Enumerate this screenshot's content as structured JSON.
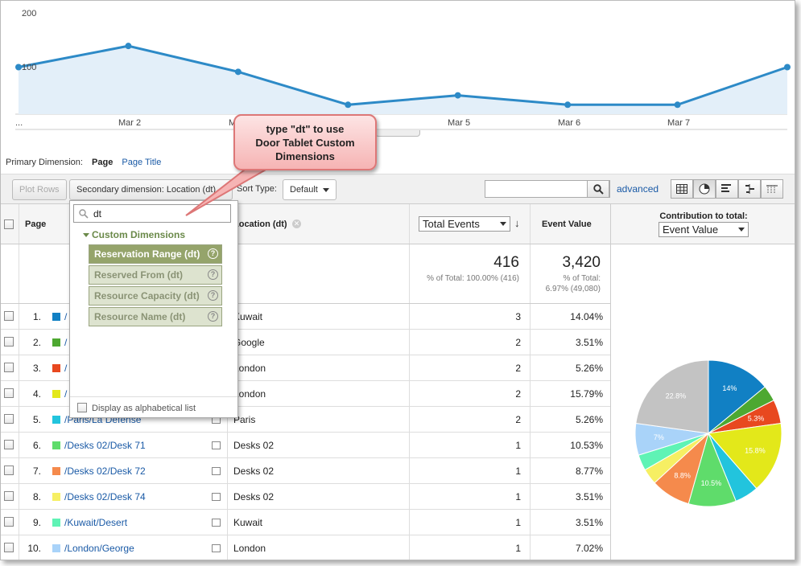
{
  "chart": {
    "y_ticks": [
      "200",
      "100"
    ],
    "x_ticks": [
      "...",
      "Mar 2",
      "M",
      "Mar 5",
      "Mar 6",
      "Mar 7"
    ],
    "values": [
      100,
      145,
      90,
      20,
      40,
      20,
      20,
      100
    ],
    "line_color": "#2d8ac7",
    "fill_color": "#e3eff9"
  },
  "primary_dimension": {
    "label": "Primary Dimension:",
    "current": "Page",
    "alternate": "Page Title"
  },
  "toolbar": {
    "plot_rows": "Plot Rows",
    "secondary_dimension": "Secondary dimension: Location (dt)",
    "sort_type_label": "Sort Type:",
    "sort_type_value": "Default",
    "search_value": "",
    "advanced": "advanced"
  },
  "table": {
    "headers": {
      "page": "Page",
      "location": "Location (dt)",
      "metric_select": "Total Events",
      "event_value": "Event Value",
      "contribution": "Contribution to total:",
      "contribution_select": "Event Value"
    },
    "summary": {
      "events": "416",
      "events_pct": "% of Total: 100.00% (416)",
      "value": "3,420",
      "value_pct_line1": "% of Total:",
      "value_pct_line2": "6.97% (49,080)"
    },
    "rows": [
      {
        "num": "1.",
        "page": "/",
        "location": "Kuwait",
        "events": "3",
        "value": "14.04%",
        "color": "#1180c4"
      },
      {
        "num": "2.",
        "page": "/",
        "location": "Google",
        "events": "2",
        "value": "3.51%",
        "color": "#4da831"
      },
      {
        "num": "3.",
        "page": "/",
        "location": "London",
        "events": "2",
        "value": "5.26%",
        "color": "#e8481f"
      },
      {
        "num": "4.",
        "page": "/",
        "location": "London",
        "events": "2",
        "value": "15.79%",
        "color": "#e3e81a"
      },
      {
        "num": "5.",
        "page": "/Paris/La Defense",
        "location": "Paris",
        "events": "2",
        "value": "5.26%",
        "color": "#22c4dd"
      },
      {
        "num": "6.",
        "page": "/Desks 02/Desk 71",
        "location": "Desks 02",
        "events": "1",
        "value": "10.53%",
        "color": "#5fdc6b"
      },
      {
        "num": "7.",
        "page": "/Desks 02/Desk 72",
        "location": "Desks 02",
        "events": "1",
        "value": "8.77%",
        "color": "#f58a4c"
      },
      {
        "num": "8.",
        "page": "/Desks 02/Desk 74",
        "location": "Desks 02",
        "events": "1",
        "value": "3.51%",
        "color": "#f6ef63"
      },
      {
        "num": "9.",
        "page": "/Kuwait/Desert",
        "location": "Kuwait",
        "events": "1",
        "value": "3.51%",
        "color": "#5ff3b5"
      },
      {
        "num": "10.",
        "page": "/London/George",
        "location": "London",
        "events": "1",
        "value": "7.02%",
        "color": "#a9d3f9"
      }
    ]
  },
  "pie": {
    "slices": [
      {
        "value": 14.04,
        "color": "#1180c4",
        "label": "14%"
      },
      {
        "value": 3.51,
        "color": "#4da831",
        "label": ""
      },
      {
        "value": 5.26,
        "color": "#e8481f",
        "label": "5.3%"
      },
      {
        "value": 15.79,
        "color": "#e3e81a",
        "label": "15.8%"
      },
      {
        "value": 5.26,
        "color": "#22c4dd",
        "label": ""
      },
      {
        "value": 10.53,
        "color": "#5fdc6b",
        "label": "10.5%"
      },
      {
        "value": 8.77,
        "color": "#f58a4c",
        "label": "8.8%"
      },
      {
        "value": 3.51,
        "color": "#f6ef63",
        "label": ""
      },
      {
        "value": 3.51,
        "color": "#5ff3b5",
        "label": ""
      },
      {
        "value": 7.02,
        "color": "#a9d3f9",
        "label": "7%"
      },
      {
        "value": 22.8,
        "color": "#c3c3c3",
        "label": "22.8%"
      }
    ]
  },
  "dropdown": {
    "query": "dt",
    "group": "Custom Dimensions",
    "items": [
      "Reservation Range (dt)",
      "Reserved From (dt)",
      "Resource Capacity (dt)",
      "Resource Name (dt)"
    ],
    "alphabetical": "Display as alphabetical list"
  },
  "callout": {
    "line1": "type \"dt\" to use",
    "line2": "Door Tablet Custom",
    "line3": "Dimensions"
  }
}
